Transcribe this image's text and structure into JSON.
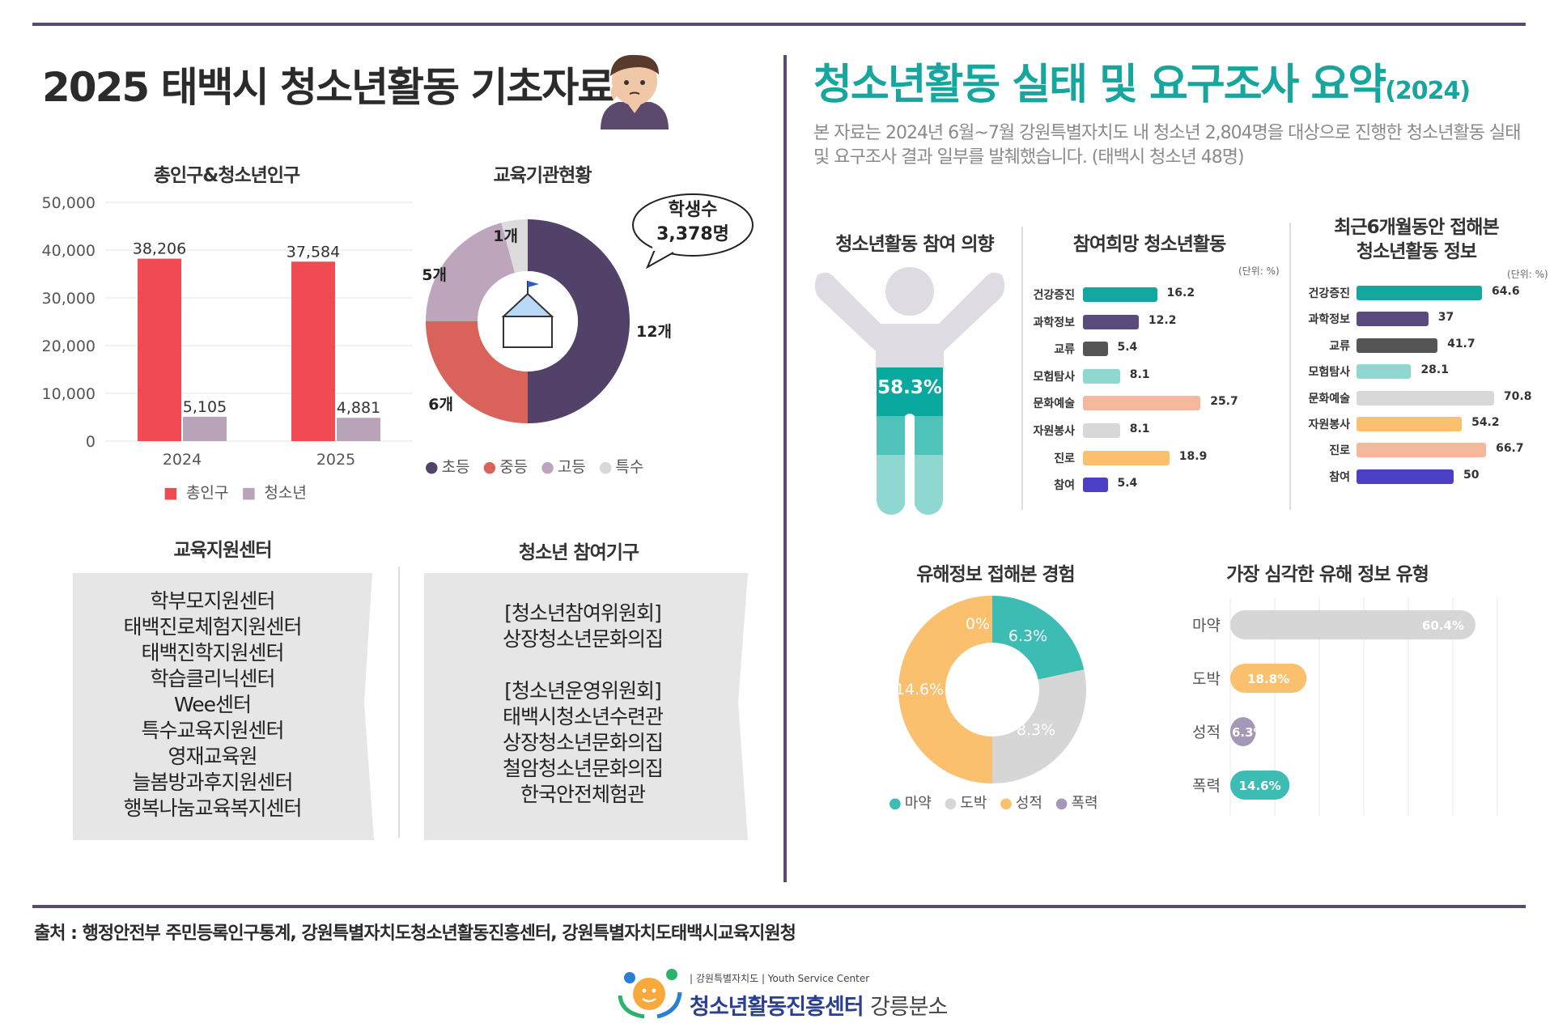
{
  "left_title": "2025 태백시 청소년활동 기초자료",
  "right_title": "청소년활동 실태 및 요구조사 요약",
  "right_title_year": "(2024)",
  "intro": "본 자료는 2024년 6월~7월 강원특별자치도 내 청소년 2,804명을 대상으로 진행한 청소년활동 실태 및 요구조사 결과 일부를 발췌했습니다. (태백시 청소년 48명)",
  "population": {
    "heading": "총인구&청소년인구",
    "y_ticks": [
      "50,000",
      "40,000",
      "30,000",
      "20,000",
      "10,000",
      "0"
    ],
    "legend": [
      "총인구",
      "청소년"
    ]
  },
  "education": {
    "heading": "교육기관현황",
    "bubble_line1": "학생수",
    "bubble_line2": "3,378명",
    "legend": [
      "초등",
      "중등",
      "고등",
      "특수"
    ]
  },
  "support_center": {
    "heading": "교육지원센터",
    "items": [
      "학부모지원센터",
      "태백진로체험지원센터",
      "태백진학지원센터",
      "학습클리닉센터",
      "Wee센터",
      "특수교육지원센터",
      "영재교육원",
      "늘봄방과후지원센터",
      "행복나눔교육복지센터"
    ]
  },
  "participation_org": {
    "heading": "청소년 참여기구",
    "group1_title": "[청소년참여위원회]",
    "group1_items": [
      "상장청소년문화의집"
    ],
    "group2_title": "[청소년운영위원회]",
    "group2_items": [
      "태백시청소년수련관",
      "상장청소년문화의집",
      "철암청소년문화의집",
      "한국안전체험관"
    ]
  },
  "intention": {
    "heading": "청소년활동 참여 의향",
    "value_label": "58.3%"
  },
  "wish": {
    "heading": "참여희망 청소년활동",
    "unit": "(단위: %)"
  },
  "exposure": {
    "heading_line1": "최근6개월동안 접해본",
    "heading_line2": "청소년활동 정보",
    "unit": "(단위: %)"
  },
  "harmful": {
    "heading": "유해정보 접해본 경험",
    "legend": [
      "마약",
      "도박",
      "성적",
      "폭력"
    ]
  },
  "serious": {
    "heading": "가장 심각한 유해 정보 유형"
  },
  "source": "출처 :  행정안전부 주민등록인구통계, 강원특별자치도청소년활동진흥센터, 강원특별자치도태백시교육지원청",
  "logo": {
    "small": "| 강원특별자치도 |  Youth Service Center",
    "main": "청소년활동진흥센터",
    "branch": "강릉분소"
  },
  "colors": {
    "accent": "#17a69e",
    "divider": "#5a4a6e",
    "red": "#f04a53",
    "mauve": "#b9a3b8"
  },
  "chart_data": [
    {
      "type": "bar",
      "title": "총인구&청소년인구",
      "categories": [
        "2024",
        "2025"
      ],
      "series": [
        {
          "name": "총인구",
          "values": [
            38206,
            37584
          ],
          "labels": [
            "38,206",
            "37,584"
          ],
          "color": "#f04a53"
        },
        {
          "name": "청소년",
          "values": [
            5105,
            4881
          ],
          "labels": [
            "5,105",
            "4,881"
          ],
          "color": "#b9a3b8"
        }
      ],
      "ylim": [
        0,
        50000
      ]
    },
    {
      "type": "pie",
      "title": "교육기관현황",
      "slices": [
        {
          "name": "초등",
          "value": 12,
          "label": "12개",
          "color": "#52426a"
        },
        {
          "name": "중등",
          "value": 6,
          "label": "6개",
          "color": "#d9625a"
        },
        {
          "name": "고등",
          "value": 5,
          "label": "5개",
          "color": "#bda6bc"
        },
        {
          "name": "특수",
          "value": 1,
          "label": "1개",
          "color": "#dcdcdc"
        }
      ]
    },
    {
      "type": "bar",
      "title": "참여희망 청소년활동",
      "orientation": "horizontal",
      "categories": [
        "건강증진",
        "과학정보",
        "교류",
        "모험탐사",
        "문화예술",
        "자원봉사",
        "진로",
        "참여"
      ],
      "values": [
        16.2,
        12.2,
        5.4,
        8.1,
        25.7,
        8.1,
        18.9,
        5.4
      ],
      "colors": [
        "#13a79f",
        "#5b4a7d",
        "#555555",
        "#8fd8d2",
        "#f6b89c",
        "#d8d8d8",
        "#fbc06d",
        "#4b3fc6"
      ]
    },
    {
      "type": "bar",
      "title": "최근6개월동안 접해본 청소년활동 정보",
      "orientation": "horizontal",
      "categories": [
        "건강증진",
        "과학정보",
        "교류",
        "모험탐사",
        "문화예술",
        "자원봉사",
        "진로",
        "참여"
      ],
      "values": [
        64.6,
        37,
        41.7,
        28.1,
        70.8,
        54.2,
        66.7,
        50
      ],
      "colors": [
        "#13a79f",
        "#5b4a7d",
        "#555555",
        "#8fd8d2",
        "#d8d8d8",
        "#fbc06d",
        "#f6b89c",
        "#4b3fc6"
      ]
    },
    {
      "type": "pie",
      "title": "유해정보 접해본 경험",
      "slices": [
        {
          "name": "0%",
          "value": 0,
          "label": "0%",
          "color": "#ffffff"
        },
        {
          "name": "마약",
          "value": 6.3,
          "label": "6.3%",
          "color": "#3dbcb3"
        },
        {
          "name": "도박",
          "value": 8.3,
          "label": "8.3%",
          "color": "#d6d6d6"
        },
        {
          "name": "성적",
          "value": 14.6,
          "label": "14.6%",
          "color": "#fbc06d"
        }
      ]
    },
    {
      "type": "bar",
      "title": "가장 심각한 유해 정보 유형",
      "orientation": "horizontal",
      "categories": [
        "마약",
        "도박",
        "성적",
        "폭력"
      ],
      "values": [
        60.4,
        18.8,
        6.3,
        14.6
      ],
      "labels": [
        "60.4%",
        "18.8%",
        "6.3%",
        "14.6%"
      ],
      "colors": [
        "#d6d6d6",
        "#fbc06d",
        "#a597b8",
        "#3dbcb3"
      ],
      "xlim": [
        0,
        100
      ]
    }
  ]
}
